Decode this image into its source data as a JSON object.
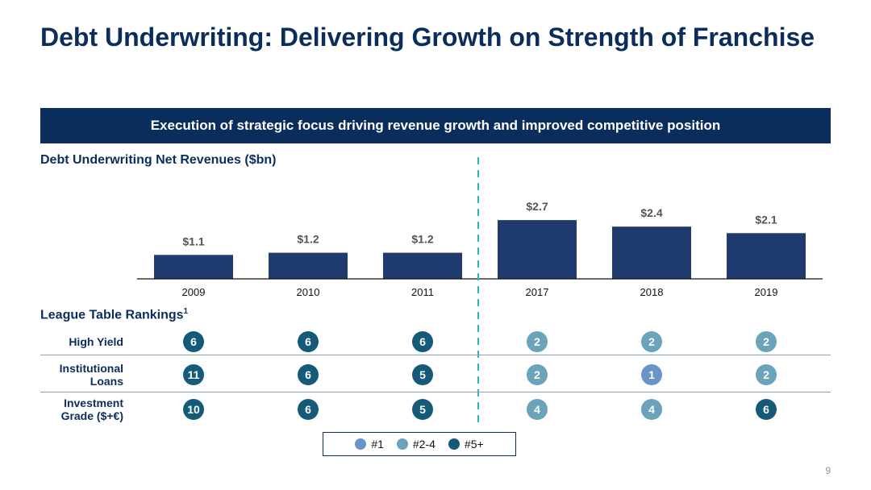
{
  "title": "Debt Underwriting: Delivering Growth on Strength of Franchise",
  "banner": "Execution of strategic focus driving revenue growth and improved competitive position",
  "page_number": "9",
  "colors": {
    "navy": "#0b2d5c",
    "bar": "#1f3a6e",
    "rank_1": "#6b93c7",
    "rank_2_4": "#6aa3ba",
    "rank_5_plus": "#165a7a",
    "divider": "#2fb3b3"
  },
  "chart_data": {
    "type": "bar",
    "title": "Debt Underwriting Net Revenues ($bn)",
    "categories": [
      "2009",
      "2010",
      "2011",
      "2017",
      "2018",
      "2019"
    ],
    "values": [
      1.1,
      1.2,
      1.2,
      2.7,
      2.4,
      2.1
    ],
    "value_labels": [
      "$1.1",
      "$1.2",
      "$1.2",
      "$2.7",
      "$2.4",
      "$2.1"
    ],
    "ylim": [
      0,
      3.0
    ]
  },
  "rankings": {
    "title": "League Table Rankings",
    "title_superscript": "1",
    "rows": [
      {
        "label": "High Yield",
        "ranks": [
          6,
          6,
          6,
          2,
          2,
          2
        ]
      },
      {
        "label": "Institutional Loans",
        "ranks": [
          11,
          6,
          5,
          2,
          1,
          2
        ]
      },
      {
        "label": "Investment Grade ($+€)",
        "ranks": [
          10,
          6,
          5,
          4,
          4,
          6
        ]
      }
    ]
  },
  "legend": [
    {
      "label": "#1",
      "color_key": "rank_1"
    },
    {
      "label": "#2-4",
      "color_key": "rank_2_4"
    },
    {
      "label": "#5+",
      "color_key": "rank_5_plus"
    }
  ]
}
